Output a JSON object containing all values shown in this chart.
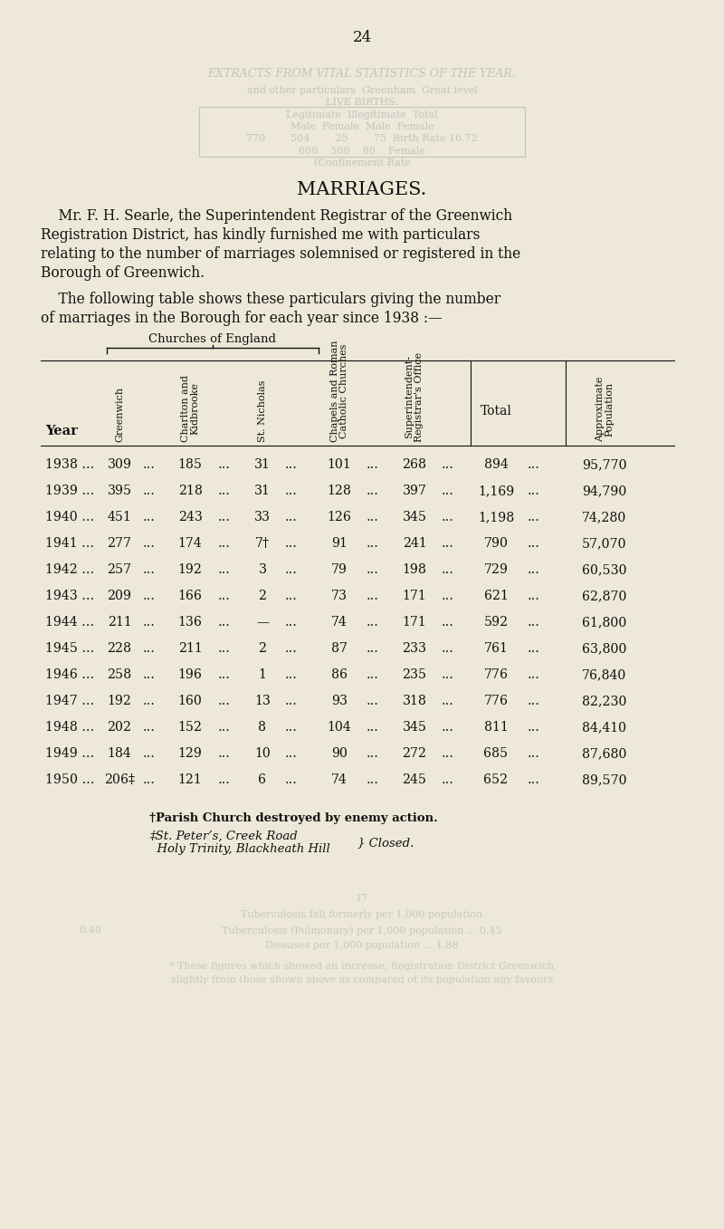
{
  "page_number": "24",
  "title": "MARRIAGES.",
  "intro_text_line1": "    Mr. F. H. Searle, the Superintendent Registrar of the Greenwich",
  "intro_text_line2": "Registration District, has kindly furnished me with particulars",
  "intro_text_line3": "relating to the number of marriages solemnised or registered in the",
  "intro_text_line4": "Borough of Greenwich.",
  "following_line1": "    The following table shows these particulars giving the number",
  "following_line2": "of marriages in the Borough for each year since 1938 :—",
  "col_group_label": "Churches of England",
  "rows": [
    [
      "1938 ...",
      "309",
      "185",
      "31",
      "101",
      "268",
      "894",
      "95,770"
    ],
    [
      "1939 ...",
      "395",
      "218",
      "31",
      "128",
      "397",
      "1,169",
      "94,790"
    ],
    [
      "1940 ...",
      "451",
      "243",
      "33",
      "126",
      "345",
      "1,198",
      "74,280"
    ],
    [
      "1941 ...",
      "277",
      "174",
      "7†",
      "91",
      "241",
      "790",
      "57,070"
    ],
    [
      "1942 ...",
      "257",
      "192",
      "3",
      "79",
      "198",
      "729",
      "60,530"
    ],
    [
      "1943 ...",
      "209",
      "166",
      "2",
      "73",
      "171",
      "621",
      "62,870"
    ],
    [
      "1944 ...",
      "211",
      "136",
      "—",
      "74",
      "171",
      "592",
      "61,800"
    ],
    [
      "1945 ...",
      "228",
      "211",
      "2",
      "87",
      "233",
      "761",
      "63,800"
    ],
    [
      "1946 ...",
      "258",
      "196",
      "1",
      "86",
      "235",
      "776",
      "76,840"
    ],
    [
      "1947 ...",
      "192",
      "160",
      "13",
      "93",
      "318",
      "776",
      "82,230"
    ],
    [
      "1948 ...",
      "202",
      "152",
      "8",
      "104",
      "345",
      "811",
      "84,410"
    ],
    [
      "1949 ...",
      "184",
      "129",
      "10",
      "90",
      "272",
      "685",
      "87,680"
    ],
    [
      "1950 ...",
      "206‡",
      "121",
      "6",
      "74",
      "245",
      "652",
      "89,570"
    ]
  ],
  "fn1": "†Parish Church destroyed by enemy action.",
  "fn2": "‡St. Peter’s, Creek Road",
  "fn3": "  Holy Trinity, Blackheath Hill",
  "fn4": "} Closed.",
  "bg_color": "#ede8d8",
  "text_color": "#111111",
  "bleed_color": "#8899aa"
}
